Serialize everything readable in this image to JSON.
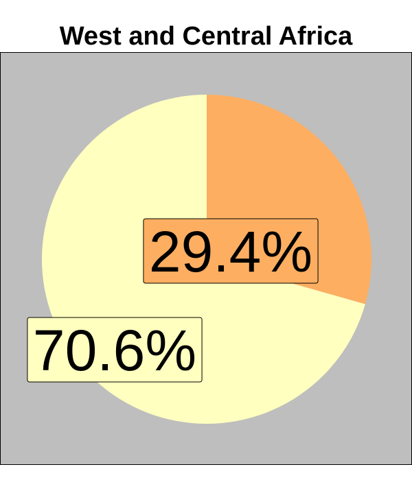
{
  "chart_data": {
    "type": "pie",
    "title": "West and Central Africa",
    "slices": [
      {
        "label": "29.4%",
        "value": 29.4,
        "color": "#fdae61"
      },
      {
        "label": "70.6%",
        "value": 70.6,
        "color": "#ffffbf"
      }
    ],
    "start_angle": "12 o'clock",
    "direction": "clockwise",
    "background_color": "#bebebe",
    "legend": "none"
  }
}
